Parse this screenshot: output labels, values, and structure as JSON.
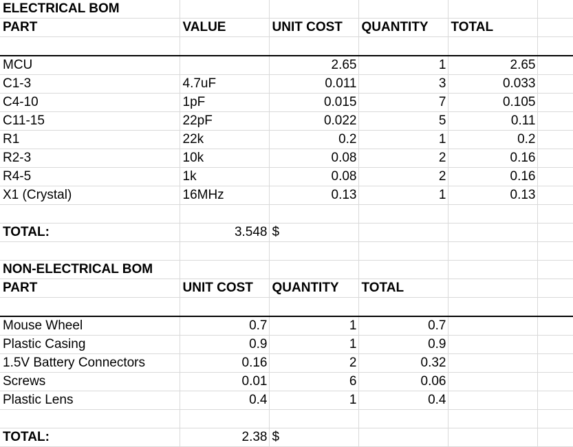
{
  "electrical": {
    "title": "ELECTRICAL BOM",
    "headers": [
      "PART",
      "VALUE",
      "UNIT COST",
      "QUANTITY",
      "TOTAL"
    ],
    "rows": [
      {
        "part": "MCU",
        "value": "",
        "unit_cost": "2.65",
        "quantity": "1",
        "total": "2.65"
      },
      {
        "part": "C1-3",
        "value": "4.7uF",
        "unit_cost": "0.011",
        "quantity": "3",
        "total": "0.033"
      },
      {
        "part": "C4-10",
        "value": "1pF",
        "unit_cost": "0.015",
        "quantity": "7",
        "total": "0.105"
      },
      {
        "part": "C11-15",
        "value": "22pF",
        "unit_cost": "0.022",
        "quantity": "5",
        "total": "0.11"
      },
      {
        "part": "R1",
        "value": "22k",
        "unit_cost": "0.2",
        "quantity": "1",
        "total": "0.2"
      },
      {
        "part": "R2-3",
        "value": "10k",
        "unit_cost": "0.08",
        "quantity": "2",
        "total": "0.16"
      },
      {
        "part": "R4-5",
        "value": "1k",
        "unit_cost": "0.08",
        "quantity": "2",
        "total": "0.16"
      },
      {
        "part": "X1 (Crystal)",
        "value": "16MHz",
        "unit_cost": "0.13",
        "quantity": "1",
        "total": "0.13"
      }
    ],
    "total_label": "TOTAL:",
    "total_value": "3.548",
    "currency": "$"
  },
  "non_electrical": {
    "title": "NON-ELECTRICAL BOM",
    "headers": [
      "PART",
      "UNIT COST",
      "QUANTITY",
      "TOTAL"
    ],
    "rows": [
      {
        "part": "Mouse Wheel",
        "unit_cost": "0.7",
        "quantity": "1",
        "total": "0.7"
      },
      {
        "part": "Plastic Casing",
        "unit_cost": "0.9",
        "quantity": "1",
        "total": "0.9"
      },
      {
        "part": "1.5V Battery Connectors",
        "unit_cost": "0.16",
        "quantity": "2",
        "total": "0.32"
      },
      {
        "part": "Screws",
        "unit_cost": "0.01",
        "quantity": "6",
        "total": "0.06"
      },
      {
        "part": "Plastic Lens",
        "unit_cost": "0.4",
        "quantity": "1",
        "total": "0.4"
      }
    ],
    "total_label": "TOTAL:",
    "total_value": "2.38",
    "currency": "$"
  },
  "colors": {
    "grid": "#d9d9d9",
    "separator": "#000000",
    "text": "#000000",
    "background": "#ffffff"
  }
}
